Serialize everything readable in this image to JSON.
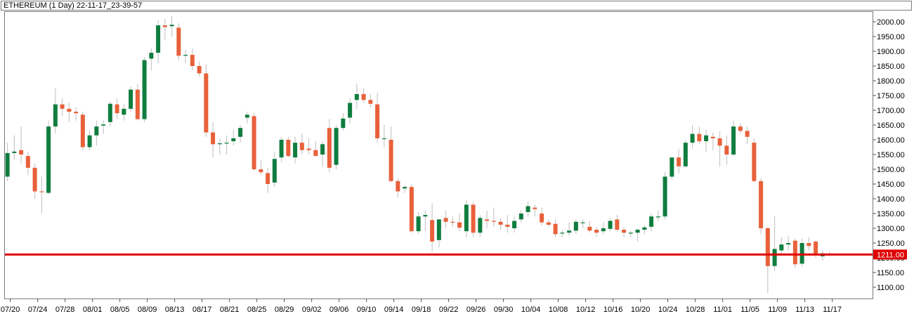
{
  "window": {
    "title": "ETHEREUM (1 Day) 22-11-17_23-39-57"
  },
  "colors": {
    "up": "#0f7d3e",
    "down": "#e8613a",
    "wick": "#bdbdbd",
    "price_line": "#e00000",
    "price_tag": "#e00000"
  },
  "chart_data": {
    "type": "candlestick",
    "title": "ETHEREUM (1 Day)",
    "ylim": [
      1060,
      2020
    ],
    "y_ticks": [
      "1100.00",
      "1150.00",
      "1200.00",
      "1250.00",
      "1300.00",
      "1350.00",
      "1400.00",
      "1450.00",
      "1500.00",
      "1550.00",
      "1600.00",
      "1650.00",
      "1700.00",
      "1750.00",
      "1800.00",
      "1850.00",
      "1900.00",
      "1950.00",
      "2000.00"
    ],
    "x_ticks": [
      "07/20",
      "07/24",
      "07/28",
      "08/01",
      "08/05",
      "08/09",
      "08/13",
      "08/17",
      "08/21",
      "08/25",
      "08/29",
      "09/02",
      "09/06",
      "09/10",
      "09/14",
      "09/18",
      "09/22",
      "09/26",
      "09/30",
      "10/04",
      "10/08",
      "10/12",
      "10/16",
      "10/20",
      "10/24",
      "10/28",
      "11/01",
      "11/05",
      "11/09",
      "11/13",
      "11/17"
    ],
    "current_price": {
      "value": 1211,
      "label": "1211.00"
    },
    "candles": [
      {
        "o": 1475,
        "h": 1590,
        "l": 1460,
        "c": 1555
      },
      {
        "o": 1555,
        "h": 1615,
        "l": 1530,
        "c": 1560
      },
      {
        "o": 1565,
        "h": 1645,
        "l": 1520,
        "c": 1550
      },
      {
        "o": 1545,
        "h": 1560,
        "l": 1480,
        "c": 1505
      },
      {
        "o": 1505,
        "h": 1520,
        "l": 1400,
        "c": 1425
      },
      {
        "o": 1425,
        "h": 1475,
        "l": 1350,
        "c": 1423
      },
      {
        "o": 1420,
        "h": 1665,
        "l": 1415,
        "c": 1645
      },
      {
        "o": 1645,
        "h": 1775,
        "l": 1620,
        "c": 1720
      },
      {
        "o": 1720,
        "h": 1740,
        "l": 1680,
        "c": 1705
      },
      {
        "o": 1705,
        "h": 1725,
        "l": 1660,
        "c": 1695
      },
      {
        "o": 1695,
        "h": 1710,
        "l": 1665,
        "c": 1690
      },
      {
        "o": 1685,
        "h": 1695,
        "l": 1565,
        "c": 1575
      },
      {
        "o": 1575,
        "h": 1630,
        "l": 1565,
        "c": 1615
      },
      {
        "o": 1615,
        "h": 1665,
        "l": 1580,
        "c": 1645
      },
      {
        "o": 1648,
        "h": 1665,
        "l": 1620,
        "c": 1652
      },
      {
        "o": 1660,
        "h": 1730,
        "l": 1645,
        "c": 1722
      },
      {
        "o": 1720,
        "h": 1740,
        "l": 1670,
        "c": 1690
      },
      {
        "o": 1685,
        "h": 1720,
        "l": 1665,
        "c": 1705
      },
      {
        "o": 1705,
        "h": 1780,
        "l": 1695,
        "c": 1770
      },
      {
        "o": 1770,
        "h": 1790,
        "l": 1665,
        "c": 1670
      },
      {
        "o": 1670,
        "h": 1880,
        "l": 1660,
        "c": 1870
      },
      {
        "o": 1875,
        "h": 1910,
        "l": 1835,
        "c": 1895
      },
      {
        "o": 1895,
        "h": 2005,
        "l": 1860,
        "c": 1988
      },
      {
        "o": 1988,
        "h": 2010,
        "l": 1940,
        "c": 1982
      },
      {
        "o": 1985,
        "h": 2020,
        "l": 1950,
        "c": 1990
      },
      {
        "o": 1980,
        "h": 1995,
        "l": 1870,
        "c": 1885
      },
      {
        "o": 1885,
        "h": 1905,
        "l": 1860,
        "c": 1888
      },
      {
        "o": 1888,
        "h": 1910,
        "l": 1835,
        "c": 1850
      },
      {
        "o": 1850,
        "h": 1865,
        "l": 1815,
        "c": 1825
      },
      {
        "o": 1825,
        "h": 1855,
        "l": 1610,
        "c": 1625
      },
      {
        "o": 1625,
        "h": 1660,
        "l": 1540,
        "c": 1585
      },
      {
        "o": 1585,
        "h": 1605,
        "l": 1550,
        "c": 1588
      },
      {
        "o": 1588,
        "h": 1615,
        "l": 1550,
        "c": 1590
      },
      {
        "o": 1595,
        "h": 1635,
        "l": 1580,
        "c": 1605
      },
      {
        "o": 1610,
        "h": 1650,
        "l": 1590,
        "c": 1640
      },
      {
        "o": 1675,
        "h": 1695,
        "l": 1655,
        "c": 1685
      },
      {
        "o": 1680,
        "h": 1690,
        "l": 1495,
        "c": 1500
      },
      {
        "o": 1500,
        "h": 1530,
        "l": 1480,
        "c": 1490
      },
      {
        "o": 1487,
        "h": 1505,
        "l": 1420,
        "c": 1450
      },
      {
        "o": 1455,
        "h": 1560,
        "l": 1440,
        "c": 1535
      },
      {
        "o": 1540,
        "h": 1610,
        "l": 1525,
        "c": 1600
      },
      {
        "o": 1600,
        "h": 1610,
        "l": 1540,
        "c": 1545
      },
      {
        "o": 1540,
        "h": 1610,
        "l": 1520,
        "c": 1590
      },
      {
        "o": 1590,
        "h": 1620,
        "l": 1550,
        "c": 1565
      },
      {
        "o": 1570,
        "h": 1605,
        "l": 1550,
        "c": 1565
      },
      {
        "o": 1565,
        "h": 1595,
        "l": 1545,
        "c": 1545
      },
      {
        "o": 1550,
        "h": 1595,
        "l": 1510,
        "c": 1585
      },
      {
        "o": 1640,
        "h": 1670,
        "l": 1490,
        "c": 1505
      },
      {
        "o": 1515,
        "h": 1650,
        "l": 1500,
        "c": 1640
      },
      {
        "o": 1640,
        "h": 1690,
        "l": 1630,
        "c": 1672
      },
      {
        "o": 1675,
        "h": 1740,
        "l": 1655,
        "c": 1725
      },
      {
        "o": 1735,
        "h": 1790,
        "l": 1705,
        "c": 1755
      },
      {
        "o": 1755,
        "h": 1775,
        "l": 1725,
        "c": 1735
      },
      {
        "o": 1735,
        "h": 1755,
        "l": 1710,
        "c": 1722
      },
      {
        "o": 1720,
        "h": 1760,
        "l": 1590,
        "c": 1605
      },
      {
        "o": 1605,
        "h": 1650,
        "l": 1575,
        "c": 1605
      },
      {
        "o": 1600,
        "h": 1645,
        "l": 1455,
        "c": 1460
      },
      {
        "o": 1460,
        "h": 1470,
        "l": 1405,
        "c": 1425
      },
      {
        "o": 1435,
        "h": 1445,
        "l": 1420,
        "c": 1440
      },
      {
        "o": 1440,
        "h": 1450,
        "l": 1285,
        "c": 1290
      },
      {
        "o": 1290,
        "h": 1355,
        "l": 1280,
        "c": 1340
      },
      {
        "o": 1340,
        "h": 1360,
        "l": 1290,
        "c": 1345
      },
      {
        "o": 1328,
        "h": 1385,
        "l": 1220,
        "c": 1255
      },
      {
        "o": 1260,
        "h": 1330,
        "l": 1235,
        "c": 1330
      },
      {
        "o": 1335,
        "h": 1360,
        "l": 1300,
        "c": 1322
      },
      {
        "o": 1322,
        "h": 1340,
        "l": 1305,
        "c": 1320
      },
      {
        "o": 1320,
        "h": 1350,
        "l": 1290,
        "c": 1302
      },
      {
        "o": 1290,
        "h": 1395,
        "l": 1270,
        "c": 1380
      },
      {
        "o": 1380,
        "h": 1390,
        "l": 1270,
        "c": 1285
      },
      {
        "o": 1285,
        "h": 1345,
        "l": 1270,
        "c": 1335
      },
      {
        "o": 1330,
        "h": 1360,
        "l": 1300,
        "c": 1325
      },
      {
        "o": 1325,
        "h": 1370,
        "l": 1305,
        "c": 1322
      },
      {
        "o": 1322,
        "h": 1335,
        "l": 1295,
        "c": 1312
      },
      {
        "o": 1312,
        "h": 1345,
        "l": 1285,
        "c": 1305
      },
      {
        "o": 1300,
        "h": 1340,
        "l": 1285,
        "c": 1325
      },
      {
        "o": 1330,
        "h": 1360,
        "l": 1320,
        "c": 1350
      },
      {
        "o": 1355,
        "h": 1390,
        "l": 1340,
        "c": 1375
      },
      {
        "o": 1370,
        "h": 1380,
        "l": 1340,
        "c": 1365
      },
      {
        "o": 1350,
        "h": 1370,
        "l": 1310,
        "c": 1320
      },
      {
        "o": 1320,
        "h": 1330,
        "l": 1305,
        "c": 1312
      },
      {
        "o": 1315,
        "h": 1330,
        "l": 1270,
        "c": 1280
      },
      {
        "o": 1285,
        "h": 1295,
        "l": 1270,
        "c": 1285
      },
      {
        "o": 1285,
        "h": 1320,
        "l": 1275,
        "c": 1292
      },
      {
        "o": 1292,
        "h": 1330,
        "l": 1280,
        "c": 1322
      },
      {
        "o": 1320,
        "h": 1330,
        "l": 1300,
        "c": 1320
      },
      {
        "o": 1305,
        "h": 1325,
        "l": 1285,
        "c": 1292
      },
      {
        "o": 1295,
        "h": 1305,
        "l": 1270,
        "c": 1285
      },
      {
        "o": 1290,
        "h": 1320,
        "l": 1280,
        "c": 1300
      },
      {
        "o": 1298,
        "h": 1335,
        "l": 1290,
        "c": 1325
      },
      {
        "o": 1330,
        "h": 1345,
        "l": 1290,
        "c": 1295
      },
      {
        "o": 1295,
        "h": 1305,
        "l": 1270,
        "c": 1285
      },
      {
        "o": 1285,
        "h": 1290,
        "l": 1270,
        "c": 1285
      },
      {
        "o": 1285,
        "h": 1300,
        "l": 1255,
        "c": 1295
      },
      {
        "o": 1295,
        "h": 1310,
        "l": 1280,
        "c": 1303
      },
      {
        "o": 1305,
        "h": 1350,
        "l": 1290,
        "c": 1340
      },
      {
        "o": 1340,
        "h": 1360,
        "l": 1325,
        "c": 1340
      },
      {
        "o": 1340,
        "h": 1490,
        "l": 1330,
        "c": 1475
      },
      {
        "o": 1475,
        "h": 1535,
        "l": 1465,
        "c": 1540
      },
      {
        "o": 1540,
        "h": 1570,
        "l": 1485,
        "c": 1510
      },
      {
        "o": 1510,
        "h": 1600,
        "l": 1505,
        "c": 1590
      },
      {
        "o": 1590,
        "h": 1650,
        "l": 1570,
        "c": 1620
      },
      {
        "o": 1620,
        "h": 1645,
        "l": 1585,
        "c": 1595
      },
      {
        "o": 1595,
        "h": 1635,
        "l": 1560,
        "c": 1615
      },
      {
        "o": 1610,
        "h": 1625,
        "l": 1565,
        "c": 1605
      },
      {
        "o": 1605,
        "h": 1630,
        "l": 1510,
        "c": 1580
      },
      {
        "o": 1580,
        "h": 1615,
        "l": 1515,
        "c": 1550
      },
      {
        "o": 1550,
        "h": 1665,
        "l": 1545,
        "c": 1645
      },
      {
        "o": 1645,
        "h": 1655,
        "l": 1620,
        "c": 1630
      },
      {
        "o": 1630,
        "h": 1645,
        "l": 1585,
        "c": 1610
      },
      {
        "o": 1590,
        "h": 1605,
        "l": 1455,
        "c": 1460
      },
      {
        "o": 1460,
        "h": 1470,
        "l": 1280,
        "c": 1300
      },
      {
        "o": 1300,
        "h": 1305,
        "l": 1080,
        "c": 1172
      },
      {
        "o": 1172,
        "h": 1340,
        "l": 1155,
        "c": 1230
      },
      {
        "o": 1225,
        "h": 1270,
        "l": 1215,
        "c": 1245
      },
      {
        "o": 1245,
        "h": 1275,
        "l": 1225,
        "c": 1250
      },
      {
        "o": 1258,
        "h": 1265,
        "l": 1165,
        "c": 1178
      },
      {
        "o": 1180,
        "h": 1265,
        "l": 1170,
        "c": 1250
      },
      {
        "o": 1250,
        "h": 1270,
        "l": 1225,
        "c": 1240
      },
      {
        "o": 1255,
        "h": 1260,
        "l": 1200,
        "c": 1208
      },
      {
        "o": 1205,
        "h": 1225,
        "l": 1190,
        "c": 1215
      },
      {
        "o": 1212,
        "h": 1222,
        "l": 1205,
        "c": 1211
      }
    ]
  }
}
